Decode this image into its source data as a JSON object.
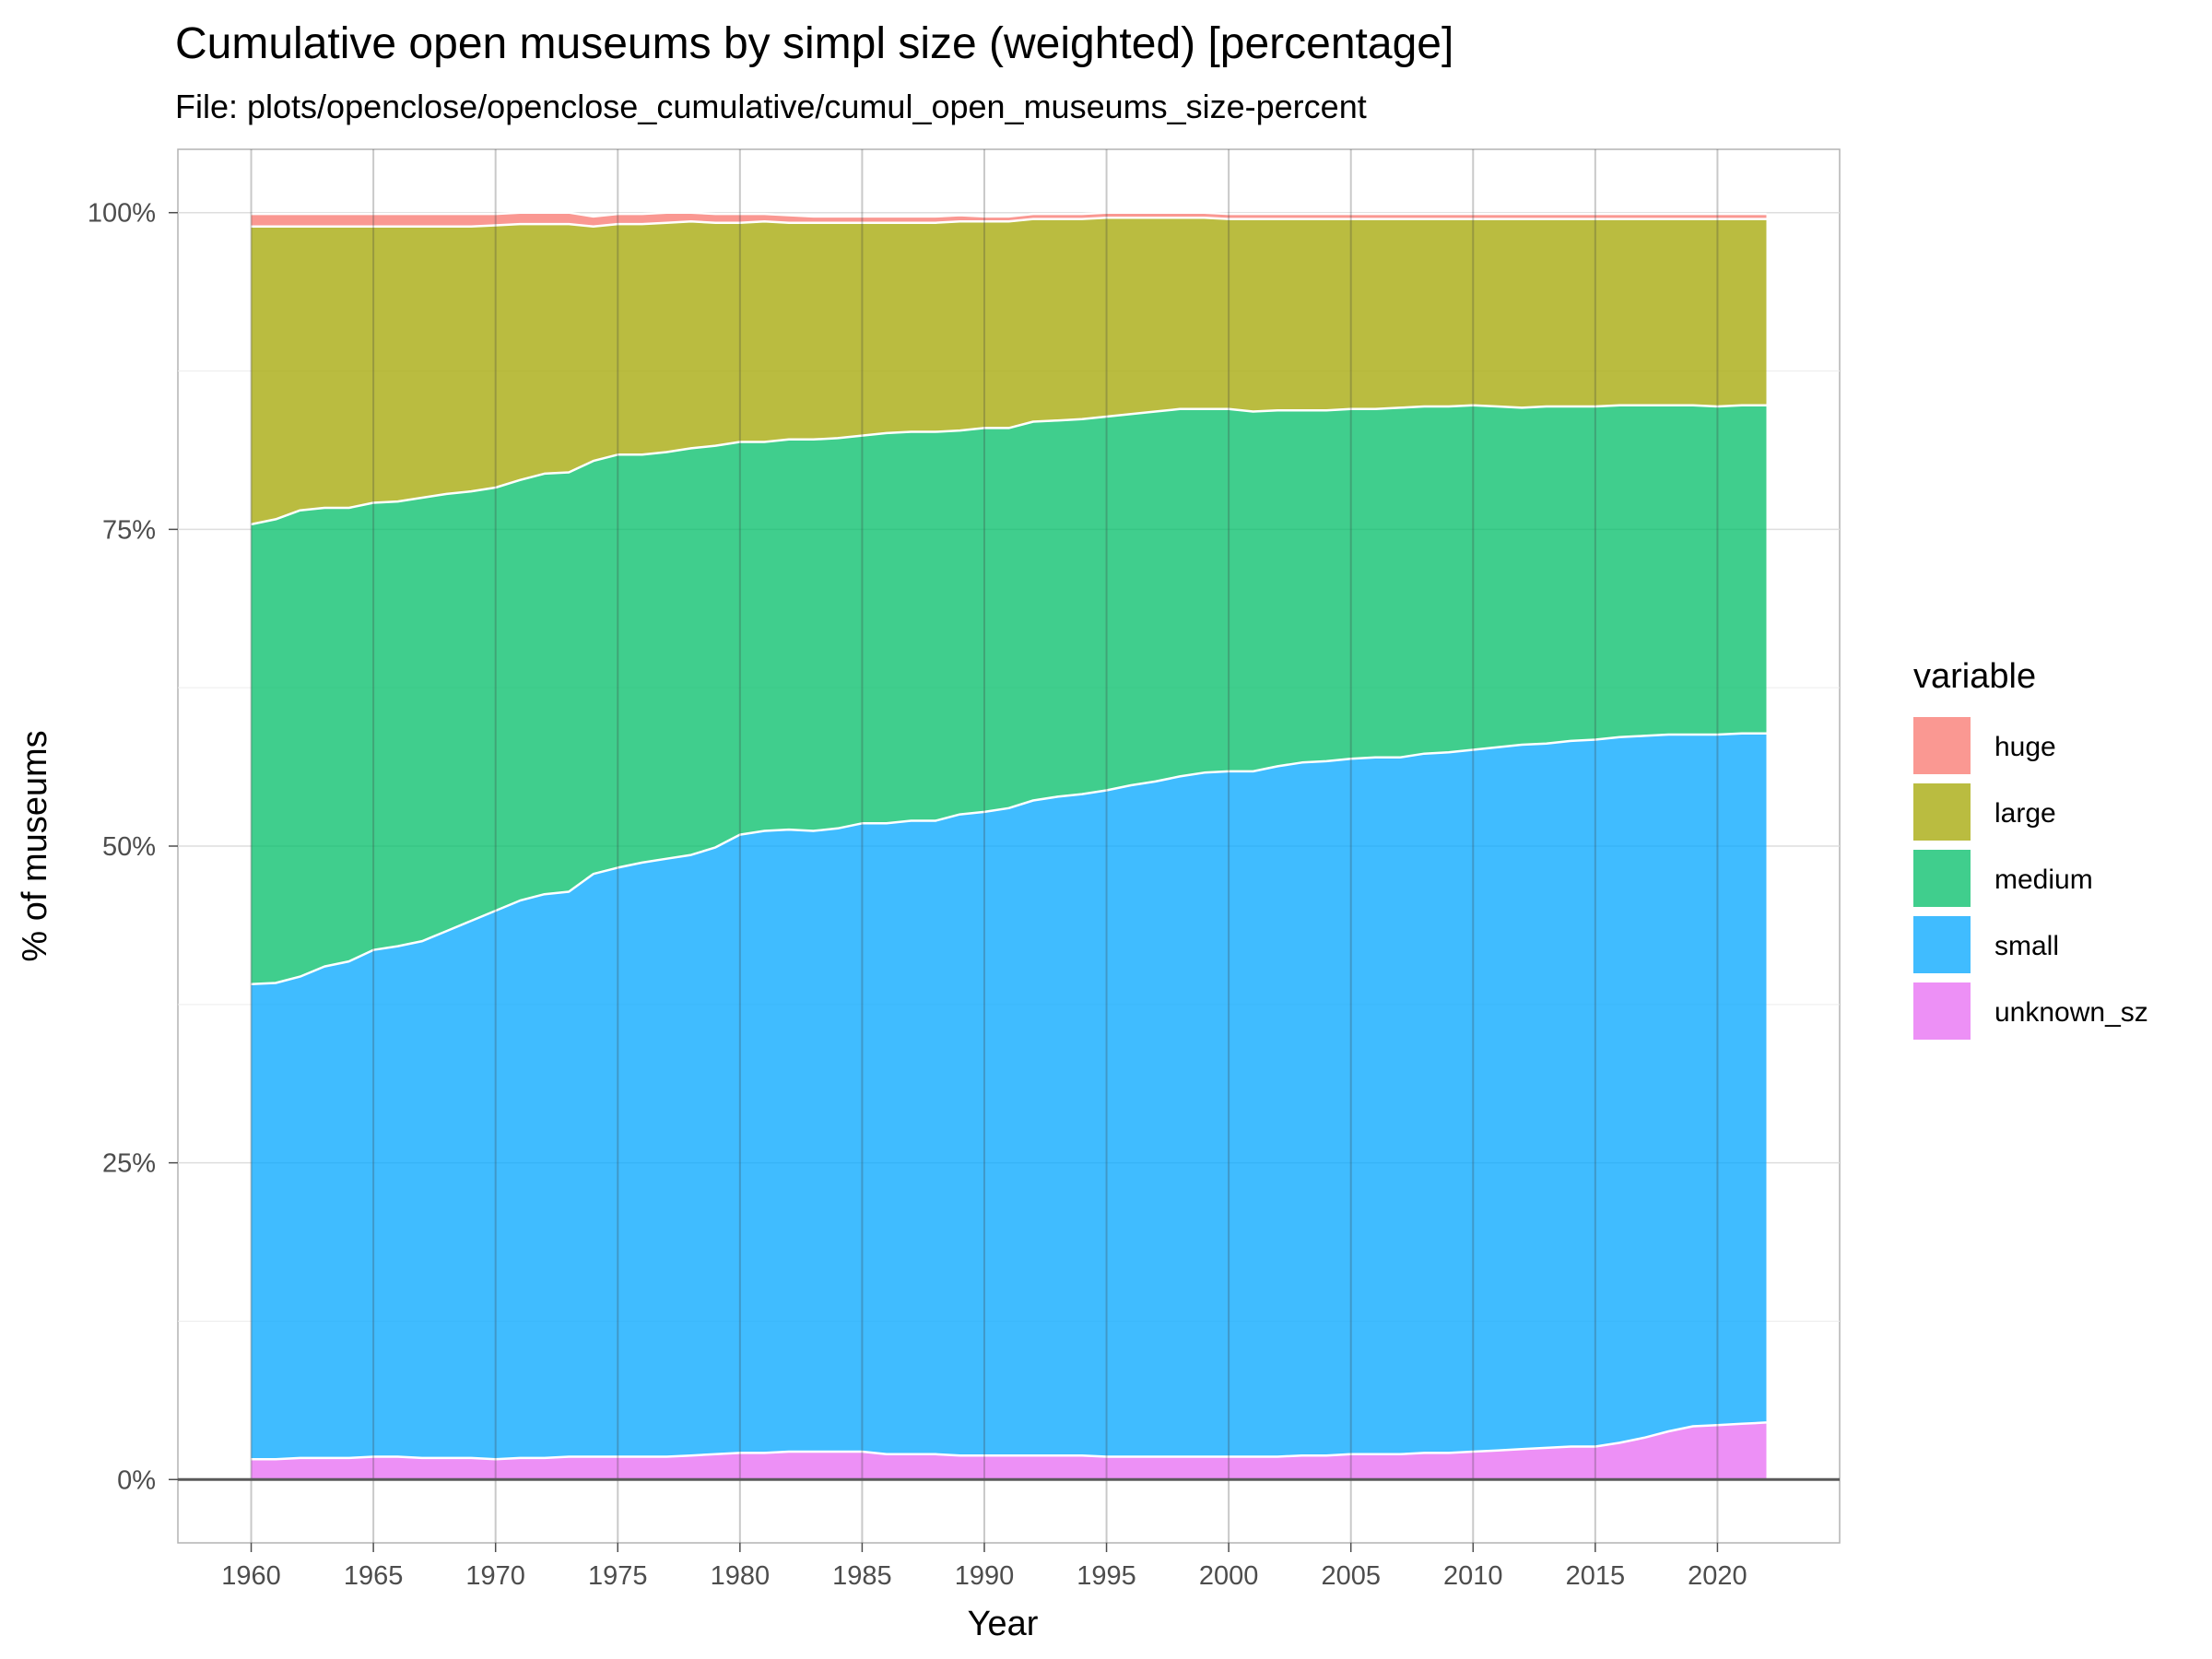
{
  "chart_data": {
    "type": "area",
    "stacked": true,
    "title": "Cumulative open museums by simpl size (weighted) [percentage]",
    "subtitle": "File: plots/openclose/openclose_cumulative/cumul_open_museums_size-percent",
    "xlabel": "Year",
    "ylabel": "% of museums",
    "xlim": [
      1957,
      2025
    ],
    "ylim": [
      -5,
      105
    ],
    "x_ticks": [
      1960,
      1965,
      1970,
      1975,
      1980,
      1985,
      1990,
      1995,
      2000,
      2005,
      2010,
      2015,
      2020
    ],
    "y_ticks": [
      0,
      25,
      50,
      75,
      100
    ],
    "y_tick_labels": [
      "0%",
      "25%",
      "50%",
      "75%",
      "100%"
    ],
    "grid": true,
    "legend_title": "variable",
    "legend_position": "right",
    "x": [
      1960,
      1961,
      1962,
      1963,
      1964,
      1965,
      1966,
      1967,
      1968,
      1969,
      1970,
      1971,
      1972,
      1973,
      1974,
      1975,
      1976,
      1977,
      1978,
      1979,
      1980,
      1981,
      1982,
      1983,
      1984,
      1985,
      1986,
      1987,
      1988,
      1989,
      1990,
      1991,
      1992,
      1993,
      1994,
      1995,
      1996,
      1997,
      1998,
      1999,
      2000,
      2001,
      2002,
      2003,
      2004,
      2005,
      2006,
      2007,
      2008,
      2009,
      2010,
      2011,
      2012,
      2013,
      2014,
      2015,
      2016,
      2017,
      2018,
      2019,
      2020,
      2021,
      2022
    ],
    "series": [
      {
        "name": "unknown_sz",
        "color": "#E76BF3",
        "values": [
          1.6,
          1.6,
          1.7,
          1.7,
          1.7,
          1.8,
          1.8,
          1.7,
          1.7,
          1.7,
          1.6,
          1.7,
          1.7,
          1.8,
          1.8,
          1.8,
          1.8,
          1.8,
          1.9,
          2.0,
          2.1,
          2.1,
          2.2,
          2.2,
          2.2,
          2.2,
          2.0,
          2.0,
          2.0,
          1.9,
          1.9,
          1.9,
          1.9,
          1.9,
          1.9,
          1.8,
          1.8,
          1.8,
          1.8,
          1.8,
          1.8,
          1.8,
          1.8,
          1.9,
          1.9,
          2.0,
          2.0,
          2.0,
          2.1,
          2.1,
          2.2,
          2.3,
          2.4,
          2.5,
          2.6,
          2.6,
          2.9,
          3.3,
          3.8,
          4.2,
          4.3,
          4.4,
          4.5
        ]
      },
      {
        "name": "small",
        "color": "#00A5FF",
        "values": [
          37.5,
          37.6,
          38.0,
          38.8,
          39.2,
          40.0,
          40.3,
          40.8,
          41.6,
          42.4,
          43.3,
          44.0,
          44.5,
          44.6,
          46.0,
          46.5,
          46.9,
          47.2,
          47.4,
          47.9,
          48.8,
          49.1,
          49.1,
          49.0,
          49.2,
          49.6,
          49.8,
          50.0,
          50.0,
          50.6,
          50.8,
          51.1,
          51.7,
          52.0,
          52.2,
          52.6,
          53.0,
          53.3,
          53.7,
          54.0,
          54.1,
          54.1,
          54.5,
          54.7,
          54.8,
          54.9,
          55.0,
          55.0,
          55.2,
          55.3,
          55.4,
          55.5,
          55.6,
          55.6,
          55.7,
          55.8,
          55.7,
          55.4,
          55.0,
          54.6,
          54.5,
          54.5,
          54.4
        ]
      },
      {
        "name": "medium",
        "color": "#00BE67",
        "values": [
          36.3,
          36.6,
          36.8,
          36.2,
          35.8,
          35.3,
          35.1,
          35.0,
          34.5,
          33.9,
          33.4,
          33.2,
          33.2,
          33.1,
          32.6,
          32.6,
          32.2,
          32.1,
          32.1,
          31.7,
          31.0,
          30.7,
          30.8,
          30.9,
          30.8,
          30.6,
          30.8,
          30.7,
          30.7,
          30.3,
          30.3,
          30.0,
          29.9,
          29.7,
          29.6,
          29.5,
          29.3,
          29.2,
          29.0,
          28.7,
          28.6,
          28.4,
          28.1,
          27.8,
          27.7,
          27.6,
          27.5,
          27.6,
          27.4,
          27.3,
          27.2,
          26.9,
          26.6,
          26.6,
          26.4,
          26.3,
          26.2,
          26.1,
          26.0,
          26.0,
          25.9,
          25.9,
          25.9
        ]
      },
      {
        "name": "large",
        "color": "#A3A500",
        "values": [
          23.5,
          23.1,
          22.4,
          22.2,
          22.2,
          21.8,
          21.7,
          21.4,
          21.1,
          20.9,
          20.7,
          20.2,
          19.7,
          19.6,
          18.5,
          18.2,
          18.2,
          18.1,
          17.9,
          17.6,
          17.3,
          17.4,
          17.1,
          17.1,
          17.0,
          16.8,
          16.6,
          16.5,
          16.5,
          16.5,
          16.3,
          16.3,
          16.0,
          15.9,
          15.8,
          15.7,
          15.5,
          15.3,
          15.1,
          15.1,
          15.0,
          15.2,
          15.1,
          15.1,
          15.1,
          15.0,
          15.0,
          14.9,
          14.8,
          14.8,
          14.7,
          14.8,
          14.9,
          14.8,
          14.8,
          14.8,
          14.7,
          14.7,
          14.7,
          14.7,
          14.8,
          14.7,
          14.7
        ]
      },
      {
        "name": "huge",
        "color": "#F8766D",
        "values": [
          1.0,
          1.0,
          1.0,
          1.0,
          1.0,
          1.0,
          1.0,
          1.0,
          1.0,
          1.0,
          0.9,
          0.9,
          0.9,
          0.9,
          0.8,
          0.8,
          0.8,
          0.8,
          0.7,
          0.7,
          0.7,
          0.6,
          0.6,
          0.5,
          0.5,
          0.5,
          0.5,
          0.5,
          0.5,
          0.5,
          0.4,
          0.4,
          0.4,
          0.4,
          0.4,
          0.4,
          0.4,
          0.4,
          0.4,
          0.4,
          0.4,
          0.4,
          0.4,
          0.4,
          0.4,
          0.4,
          0.4,
          0.4,
          0.4,
          0.4,
          0.4,
          0.4,
          0.4,
          0.4,
          0.4,
          0.4,
          0.4,
          0.4,
          0.4,
          0.4,
          0.4,
          0.4,
          0.4
        ]
      }
    ]
  }
}
